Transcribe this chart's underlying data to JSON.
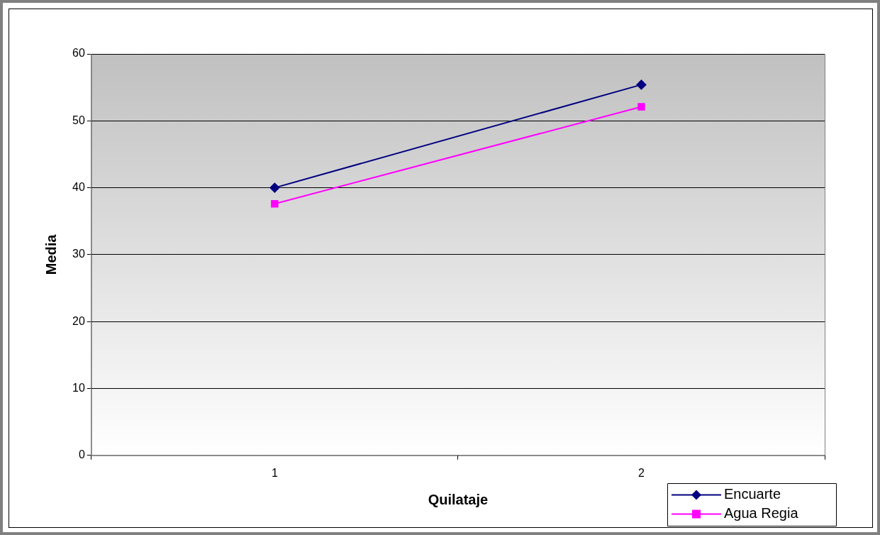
{
  "chart_data": {
    "type": "line",
    "xlabel": "Quilataje",
    "ylabel": "Media",
    "categories": [
      "1",
      "2"
    ],
    "series": [
      {
        "name": "Encuarte",
        "color": "#000080",
        "marker": "diamond",
        "values": [
          40.0,
          55.4
        ]
      },
      {
        "name": "Agua Regia",
        "color": "#ff00ff",
        "marker": "square",
        "values": [
          37.6,
          52.1
        ]
      }
    ],
    "ylim": [
      0,
      60
    ],
    "yticks": [
      0,
      10,
      20,
      30,
      40,
      50,
      60
    ],
    "grid": "y",
    "legend": "bottom right",
    "line_style": "solid"
  }
}
